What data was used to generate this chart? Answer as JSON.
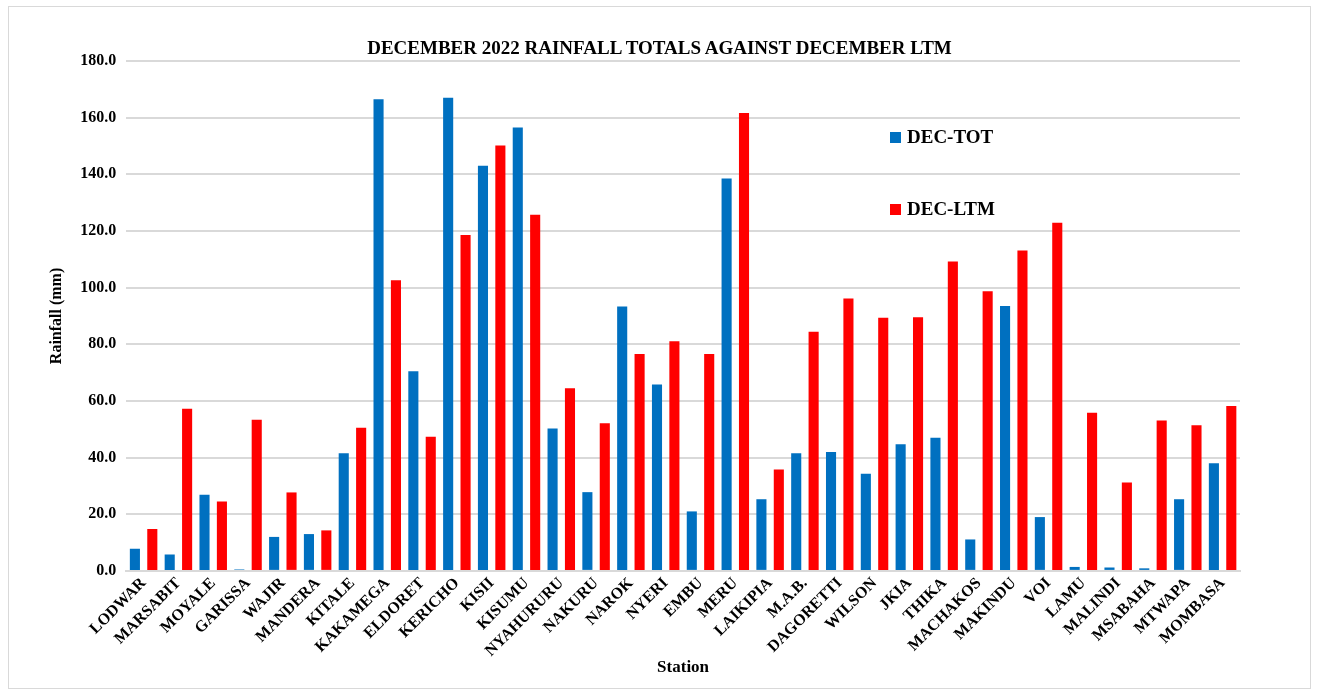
{
  "chart_data": {
    "type": "bar",
    "title": "DECEMBER 2022 RAINFALL TOTALS AGAINST DECEMBER LTM",
    "xlabel": "Station",
    "ylabel": "Rainfall (mm)",
    "categories": [
      "LODWAR",
      "MARSABIT",
      "MOYALE",
      "GARISSA",
      "WAJIR",
      "MANDERA",
      "KITALE",
      "KAKAMEGA",
      "ELDORET",
      "KERICHO",
      "KISII",
      "KISUMU",
      "NYAHURURU",
      "NAKURU",
      "NAROK",
      "NYERI",
      "EMBU",
      "MERU",
      "LAIKIPIA",
      "M.A.B.",
      "DAGORETTI",
      "WILSON",
      "JKIA",
      "THIKA",
      "MACHAKOS",
      "MAKINDU",
      "VOI",
      "LAMU",
      "MALINDI",
      "MSABAHA",
      "MTWAPA",
      "MOMBASA"
    ],
    "series": [
      {
        "name": "DEC-TOT",
        "color": "#0070c0",
        "values": [
          7.8,
          5.8,
          26.9,
          0.5,
          12,
          13,
          41.5,
          166.5,
          70.5,
          167,
          143,
          156.5,
          50.3,
          27.8,
          93.3,
          65.8,
          21,
          138.5,
          25.3,
          41.5,
          42,
          34.3,
          44.7,
          47,
          11.1,
          93.5,
          19,
          1.4,
          1.2,
          0.9,
          25.3,
          38
        ]
      },
      {
        "name": "DEC-LTM",
        "color": "#ff0000",
        "values": [
          14.8,
          57.2,
          24.5,
          53.4,
          27.7,
          14.3,
          50.5,
          102.6,
          47.4,
          118.6,
          150.2,
          125.7,
          64.5,
          52.1,
          76.6,
          81.1,
          76.6,
          161.6,
          35.8,
          84.4,
          96.2,
          89.4,
          89.5,
          109.2,
          98.7,
          113.1,
          122.9,
          55.8,
          31.2,
          53.1,
          51.4,
          58.2
        ]
      }
    ],
    "ylim": [
      0,
      180
    ],
    "yticks": [
      {
        "value": 0,
        "label": "0.0"
      },
      {
        "value": 20,
        "label": "20.0"
      },
      {
        "value": 40,
        "label": "40.0"
      },
      {
        "value": 60,
        "label": "60.0"
      },
      {
        "value": 80,
        "label": "80.0"
      },
      {
        "value": 100,
        "label": "100.0"
      },
      {
        "value": 120,
        "label": "120.0"
      },
      {
        "value": 140,
        "label": "140.0"
      },
      {
        "value": 160,
        "label": "160.0"
      },
      {
        "value": 180,
        "label": "180.0"
      }
    ],
    "grid": "y",
    "legend": "top right"
  }
}
